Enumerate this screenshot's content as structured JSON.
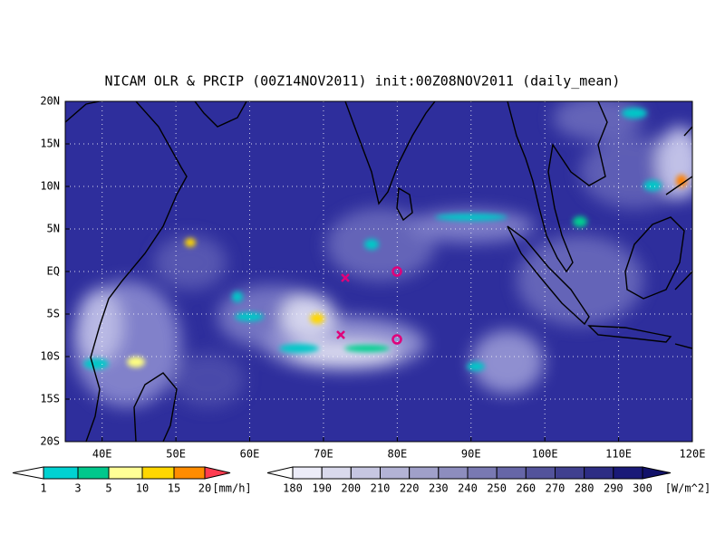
{
  "header": {
    "title": "NICAM OLR & PRCIP (00Z14NOV2011) init:00Z08NOV2011 (daily_mean)"
  },
  "map": {
    "lat_labels": [
      "20N",
      "15N",
      "10N",
      "5N",
      "EQ",
      "5S",
      "10S",
      "15S",
      "20S"
    ],
    "lon_labels": [
      "40E",
      "50E",
      "60E",
      "70E",
      "80E",
      "90E",
      "100E",
      "110E",
      "120E"
    ]
  },
  "precip_colorbar": {
    "labels": [
      "1",
      "3",
      "5",
      "10",
      "15",
      "20"
    ],
    "unit": "[mm/h]"
  },
  "olr_colorbar": {
    "labels": [
      "180",
      "190",
      "200",
      "210",
      "220",
      "230",
      "240",
      "250",
      "260",
      "270",
      "280",
      "290",
      "300"
    ],
    "unit": "[W/m^2]"
  }
}
